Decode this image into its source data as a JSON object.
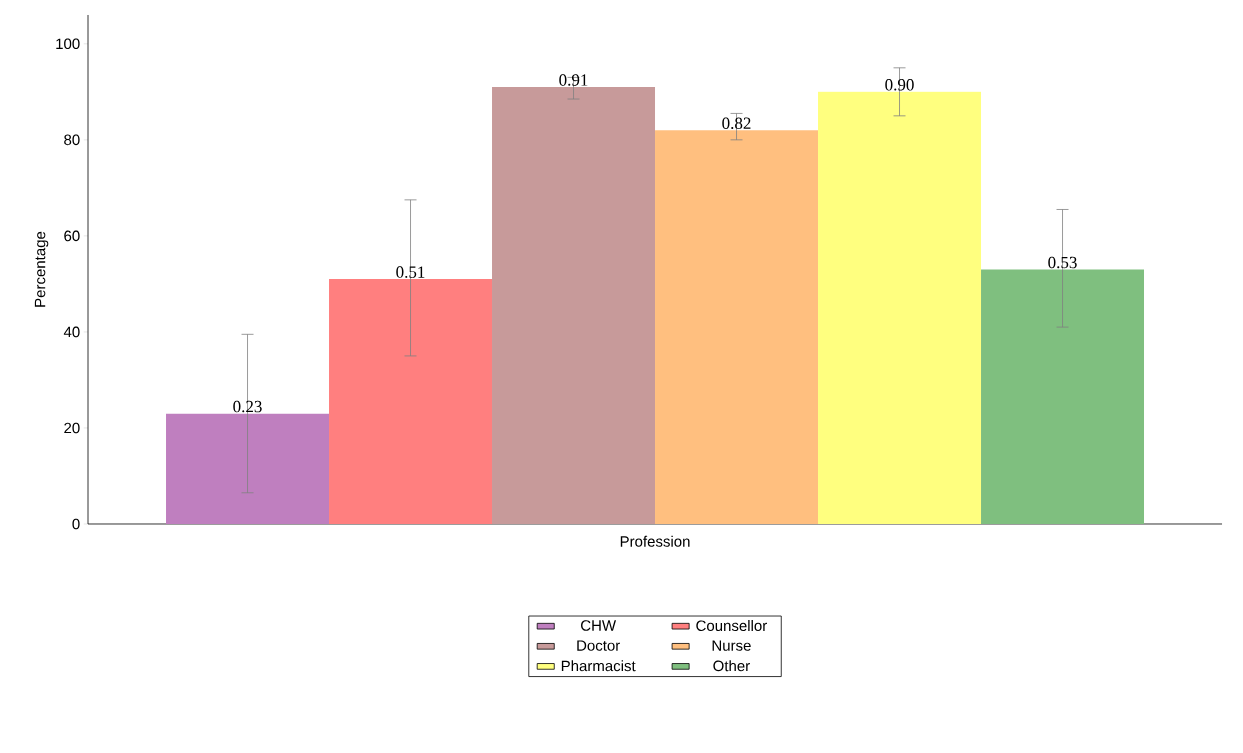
{
  "chart_data": {
    "type": "bar",
    "xlabel": "Profession",
    "ylabel": "Percentage",
    "categories": [
      null
    ],
    "series": [
      {
        "name": "CHW",
        "color": "#bf7fbf",
        "values": [
          23
        ],
        "errors": [
          [
            6.5,
            39.5
          ]
        ]
      },
      {
        "name": "Counsellor",
        "color": "#ff7f7f",
        "values": [
          51
        ],
        "errors": [
          [
            35,
            67.5
          ]
        ]
      },
      {
        "name": "Doctor",
        "color": "#c79a9a",
        "values": [
          91
        ],
        "errors": [
          [
            88.5,
            93
          ]
        ]
      },
      {
        "name": "Nurse",
        "color": "#ffbf7f",
        "values": [
          82
        ],
        "errors": [
          [
            80,
            85.5
          ]
        ]
      },
      {
        "name": "Pharmacist",
        "color": "#ffff7f",
        "values": [
          90
        ],
        "errors": [
          [
            85,
            95
          ]
        ]
      },
      {
        "name": "Other",
        "color": "#7fbf7f",
        "values": [
          53
        ],
        "errors": [
          [
            41,
            65.5
          ]
        ]
      }
    ],
    "annotations": [
      "0.23",
      "0.51",
      "0.91",
      "0.82",
      "0.90",
      "0.53"
    ],
    "ylim": [
      0,
      106
    ],
    "yticks": [
      0,
      20,
      40,
      60,
      80,
      100
    ],
    "legend": "bottom"
  }
}
